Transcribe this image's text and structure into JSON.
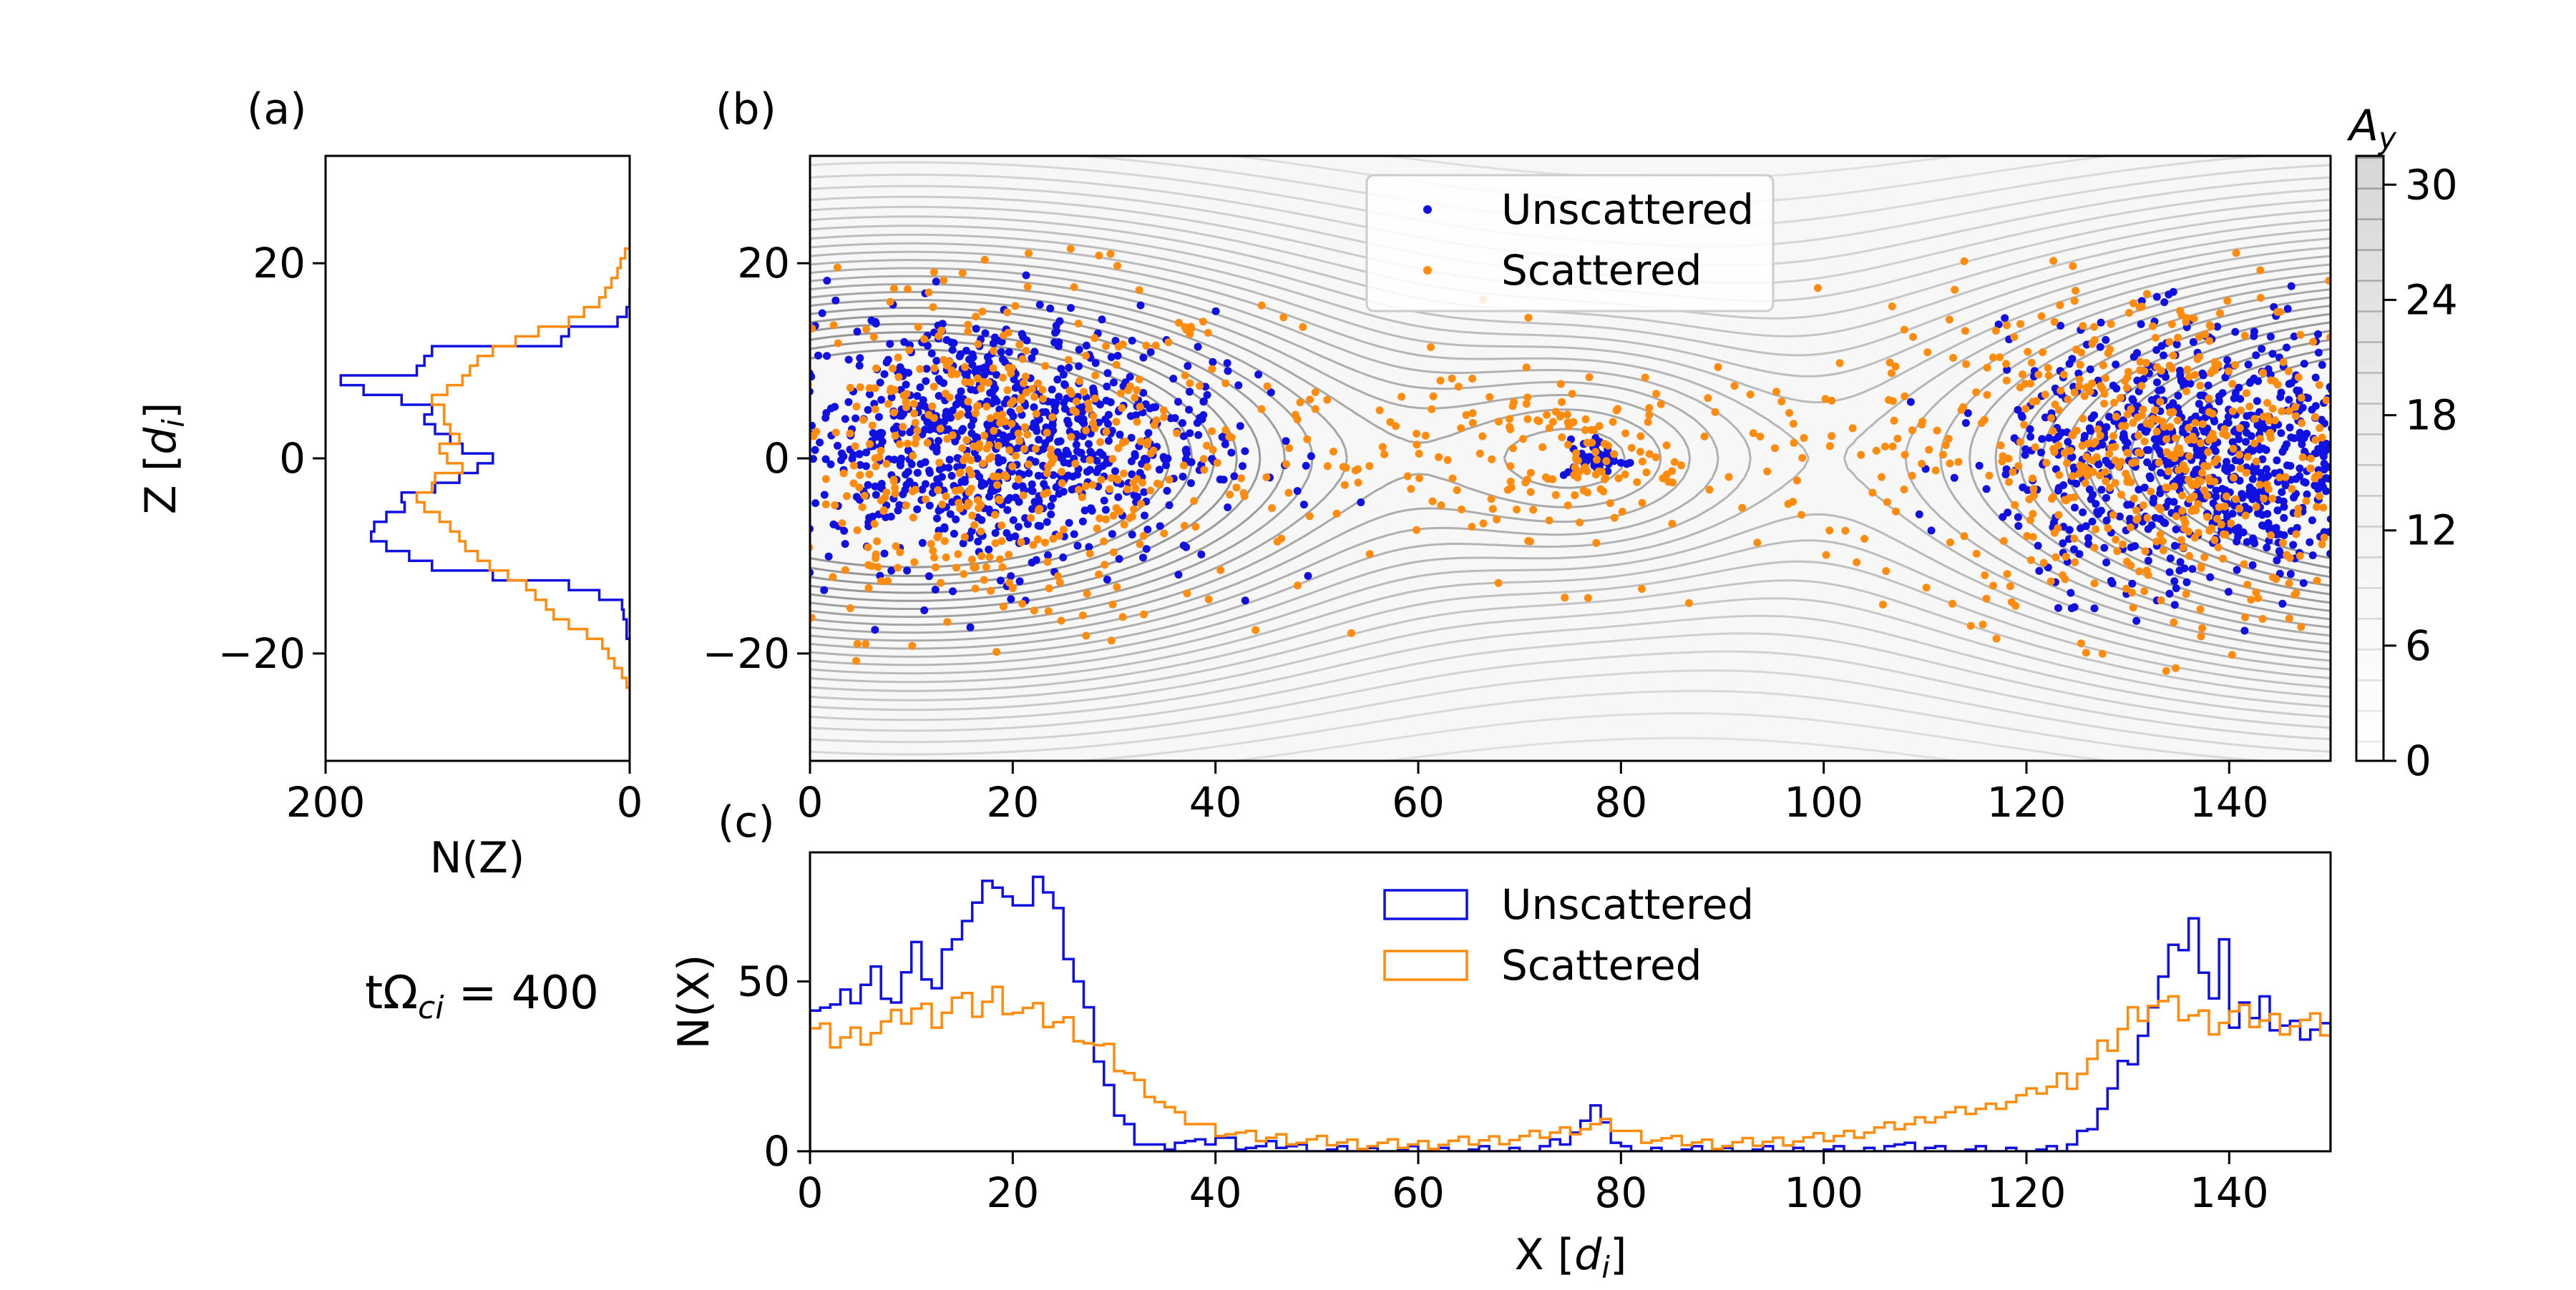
{
  "figure": {
    "time_label_prefix": "tΩ",
    "time_label_sub": "ci",
    "time_label_suffix": " = 400"
  },
  "panel_a": {
    "label": "(a)",
    "xlabel": "N(Z)",
    "ylabel_main": "Z [",
    "ylabel_var": "d",
    "ylabel_sub": "i",
    "ylabel_close": "]",
    "xticks": [
      "200",
      "0"
    ],
    "yticks": [
      "20",
      "0",
      "−20"
    ]
  },
  "panel_b": {
    "label": "(b)",
    "legend": [
      "Unscattered",
      "Scattered"
    ],
    "yticks": [
      "20",
      "0",
      "−20"
    ],
    "xticks": [
      "0",
      "20",
      "40",
      "60",
      "80",
      "100",
      "120",
      "140"
    ]
  },
  "colorbar": {
    "label_main": "A",
    "label_sub": "y",
    "ticks": [
      "0",
      "6",
      "12",
      "18",
      "24",
      "30"
    ]
  },
  "panel_c": {
    "label": "(c)",
    "xlabel_main": "X [",
    "xlabel_var": "d",
    "xlabel_sub": "i",
    "xlabel_close": "]",
    "ylabel": "N(X)",
    "legend": [
      "Unscattered",
      "Scattered"
    ],
    "xticks": [
      "0",
      "20",
      "40",
      "60",
      "80",
      "100",
      "120",
      "140"
    ],
    "yticks": [
      "0",
      "50"
    ]
  },
  "colors": {
    "unscattered": "#1010e0",
    "scattered": "#ff8c0e",
    "contour": "#9a9a9a"
  },
  "chart_data": [
    {
      "type": "histogram",
      "panel": "a",
      "orientation": "horizontal",
      "xlim": [
        200,
        0
      ],
      "ylim": [
        -31,
        31
      ],
      "bin_width": 1,
      "series": [
        {
          "name": "Unscattered",
          "bins": [
            [
              -22,
              0
            ],
            [
              -21,
              0
            ],
            [
              -20,
              0
            ],
            [
              -19,
              0
            ],
            [
              -18,
              2
            ],
            [
              -17,
              2
            ],
            [
              -16,
              4
            ],
            [
              -15,
              5
            ],
            [
              -14,
              20
            ],
            [
              -13,
              40
            ],
            [
              -12,
              90
            ],
            [
              -11,
              130
            ],
            [
              -10,
              145
            ],
            [
              -9,
              160
            ],
            [
              -8,
              170
            ],
            [
              -7,
              168
            ],
            [
              -6,
              160
            ],
            [
              -5,
              148
            ],
            [
              -4,
              150
            ],
            [
              -3,
              128
            ],
            [
              -2,
              112
            ],
            [
              -1,
              100
            ],
            [
              0,
              90
            ],
            [
              1,
              110
            ],
            [
              2,
              118
            ],
            [
              3,
              128
            ],
            [
              4,
              135
            ],
            [
              5,
              130
            ],
            [
              6,
              150
            ],
            [
              7,
              175
            ],
            [
              8,
              190
            ],
            [
              9,
              140
            ],
            [
              10,
              135
            ],
            [
              11,
              130
            ],
            [
              12,
              45
            ],
            [
              13,
              40
            ],
            [
              14,
              8
            ],
            [
              15,
              2
            ],
            [
              16,
              0
            ],
            [
              17,
              0
            ]
          ]
        },
        {
          "name": "Scattered",
          "bins": [
            [
              -23,
              2
            ],
            [
              -22,
              5
            ],
            [
              -21,
              10
            ],
            [
              -20,
              14
            ],
            [
              -19,
              18
            ],
            [
              -18,
              28
            ],
            [
              -17,
              40
            ],
            [
              -16,
              50
            ],
            [
              -15,
              55
            ],
            [
              -14,
              62
            ],
            [
              -13,
              68
            ],
            [
              -12,
              80
            ],
            [
              -11,
              92
            ],
            [
              -10,
              100
            ],
            [
              -9,
              108
            ],
            [
              -8,
              112
            ],
            [
              -7,
              118
            ],
            [
              -6,
              125
            ],
            [
              -5,
              135
            ],
            [
              -4,
              140
            ],
            [
              -3,
              130
            ],
            [
              -2,
              128
            ],
            [
              -1,
              110
            ],
            [
              0,
              120
            ],
            [
              1,
              125
            ],
            [
              2,
              112
            ],
            [
              3,
              118
            ],
            [
              4,
              122
            ],
            [
              5,
              122
            ],
            [
              6,
              130
            ],
            [
              7,
              120
            ],
            [
              8,
              110
            ],
            [
              9,
              105
            ],
            [
              10,
              100
            ],
            [
              11,
              90
            ],
            [
              12,
              75
            ],
            [
              13,
              60
            ],
            [
              14,
              40
            ],
            [
              15,
              30
            ],
            [
              16,
              20
            ],
            [
              17,
              16
            ],
            [
              18,
              12
            ],
            [
              19,
              8
            ],
            [
              20,
              6
            ],
            [
              21,
              3
            ],
            [
              22,
              0
            ]
          ]
        }
      ],
      "xlabel": "N(Z)",
      "ylabel": "Z [di]"
    },
    {
      "type": "scatter",
      "panel": "b",
      "xlim": [
        0,
        150
      ],
      "ylim": [
        -31,
        31
      ],
      "background": "contours of A_y",
      "legend_position": "top-center",
      "series": [
        {
          "name": "Unscattered",
          "clusters": [
            {
              "cx": 18,
              "cz": 2,
              "sx": 11,
              "sz": 6.5,
              "n": 900
            },
            {
              "cx": 138,
              "cz": 0,
              "sx": 10,
              "sz": 6.5,
              "n": 850
            },
            {
              "cx": 77.5,
              "cz": 0,
              "sx": 1.5,
              "sz": 1.0,
              "n": 45
            }
          ]
        },
        {
          "name": "Scattered",
          "clusters": [
            {
              "cx": 18,
              "cz": 0,
              "sx": 13,
              "sz": 9,
              "n": 500
            },
            {
              "cx": 133,
              "cz": 0,
              "sx": 12,
              "sz": 9,
              "n": 550
            },
            {
              "cx": 77,
              "cz": 0,
              "sx": 4.5,
              "sz": 3,
              "n": 60
            },
            {
              "cx": 77,
              "cz": 0,
              "sx": 26,
              "sz": 6,
              "n": 220
            }
          ]
        }
      ]
    },
    {
      "type": "colorbar",
      "label": "A_y",
      "range": [
        0,
        31.5
      ],
      "ticks": [
        0,
        6,
        12,
        18,
        24,
        30
      ]
    },
    {
      "type": "histogram",
      "panel": "c",
      "xlim": [
        0,
        150
      ],
      "ylim": [
        0,
        88
      ],
      "legend_position": "top-center",
      "series": [
        {
          "name": "Unscattered",
          "x": [
            0,
            2,
            4,
            6,
            8,
            10,
            12,
            14,
            16,
            18,
            20,
            22,
            24,
            26,
            28,
            30,
            32,
            34,
            36,
            38,
            40,
            42,
            44,
            46,
            48,
            50,
            55,
            60,
            65,
            70,
            72,
            74,
            76,
            77,
            78,
            79,
            80,
            82,
            85,
            90,
            95,
            100,
            104,
            106,
            108,
            110,
            112,
            114,
            116,
            118,
            120,
            122,
            124,
            126,
            128,
            130,
            132,
            133,
            134,
            135,
            136,
            137,
            138,
            139,
            140,
            141,
            142,
            143,
            144,
            146,
            148,
            150
          ],
          "y": [
            45,
            42,
            46,
            52,
            45,
            58,
            48,
            66,
            72,
            80,
            70,
            82,
            68,
            50,
            30,
            10,
            3,
            1,
            3,
            2,
            4,
            2,
            1,
            2,
            1,
            0,
            0,
            0,
            0,
            0,
            1,
            3,
            8,
            15,
            9,
            2,
            0,
            0,
            0,
            0,
            0,
            0,
            0,
            2,
            1,
            1,
            0,
            0,
            0,
            0,
            0,
            0,
            2,
            8,
            18,
            28,
            40,
            55,
            62,
            58,
            65,
            55,
            45,
            60,
            40,
            45,
            38,
            42,
            38,
            36,
            37,
            36
          ]
        },
        {
          "name": "Scattered",
          "x": [
            0,
            2,
            4,
            6,
            8,
            10,
            12,
            14,
            16,
            18,
            20,
            22,
            24,
            26,
            28,
            30,
            32,
            34,
            36,
            38,
            40,
            42,
            44,
            46,
            48,
            50,
            55,
            60,
            65,
            70,
            72,
            74,
            76,
            78,
            80,
            82,
            85,
            90,
            95,
            100,
            104,
            106,
            108,
            110,
            112,
            114,
            116,
            118,
            120,
            122,
            124,
            126,
            128,
            130,
            132,
            134,
            136,
            138,
            140,
            142,
            144,
            146,
            148,
            150
          ],
          "y": [
            35,
            33,
            34,
            36,
            38,
            42,
            40,
            44,
            42,
            46,
            42,
            40,
            38,
            36,
            30,
            26,
            20,
            15,
            10,
            8,
            6,
            5,
            4,
            4,
            3,
            3,
            2,
            2,
            3,
            4,
            5,
            6,
            7,
            8,
            6,
            4,
            3,
            2,
            3,
            4,
            6,
            7,
            8,
            10,
            11,
            12,
            13,
            15,
            17,
            19,
            22,
            26,
            32,
            40,
            44,
            42,
            40,
            38,
            40,
            39,
            38,
            38,
            37,
            36
          ]
        }
      ],
      "xlabel": "X [di]",
      "ylabel": "N(X)"
    }
  ]
}
